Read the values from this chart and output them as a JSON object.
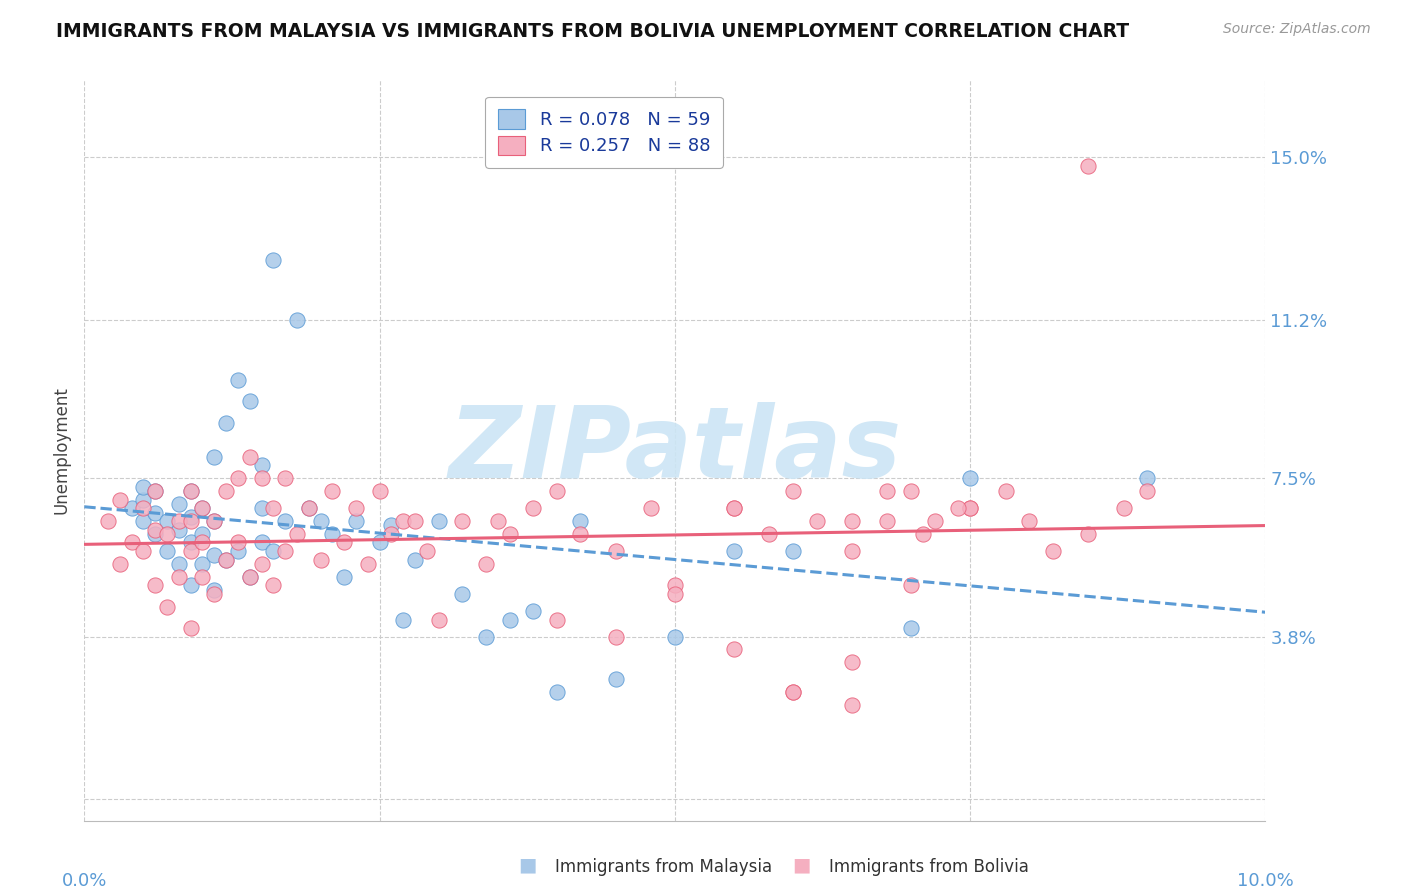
{
  "title": "IMMIGRANTS FROM MALAYSIA VS IMMIGRANTS FROM BOLIVIA UNEMPLOYMENT CORRELATION CHART",
  "source": "Source: ZipAtlas.com",
  "ylabel": "Unemployment",
  "ytick_vals": [
    0.0,
    0.038,
    0.075,
    0.112,
    0.15
  ],
  "ytick_labels": [
    "",
    "3.8%",
    "7.5%",
    "11.2%",
    "15.0%"
  ],
  "xlim": [
    0.0,
    0.1
  ],
  "ylim": [
    -0.005,
    0.168
  ],
  "color_malaysia": "#a8c8e8",
  "color_bolivia": "#f5afc0",
  "line_color_malaysia": "#5b9bd5",
  "line_color_bolivia": "#e8607a",
  "watermark_color": "#cce5f5",
  "legend_label1": "R = 0.078   N = 59",
  "legend_label2": "R = 0.257   N = 88",
  "malaysia_x": [
    0.004,
    0.005,
    0.005,
    0.005,
    0.006,
    0.006,
    0.006,
    0.007,
    0.007,
    0.008,
    0.008,
    0.008,
    0.009,
    0.009,
    0.009,
    0.009,
    0.01,
    0.01,
    0.01,
    0.011,
    0.011,
    0.011,
    0.011,
    0.012,
    0.012,
    0.013,
    0.013,
    0.014,
    0.014,
    0.015,
    0.015,
    0.015,
    0.016,
    0.016,
    0.017,
    0.018,
    0.019,
    0.02,
    0.021,
    0.022,
    0.023,
    0.025,
    0.026,
    0.027,
    0.028,
    0.03,
    0.032,
    0.034,
    0.036,
    0.038,
    0.04,
    0.042,
    0.045,
    0.05,
    0.055,
    0.06,
    0.07,
    0.075,
    0.09
  ],
  "malaysia_y": [
    0.068,
    0.065,
    0.07,
    0.073,
    0.062,
    0.067,
    0.072,
    0.058,
    0.065,
    0.055,
    0.063,
    0.069,
    0.05,
    0.06,
    0.066,
    0.072,
    0.055,
    0.062,
    0.068,
    0.049,
    0.057,
    0.065,
    0.08,
    0.056,
    0.088,
    0.058,
    0.098,
    0.052,
    0.093,
    0.06,
    0.068,
    0.078,
    0.058,
    0.126,
    0.065,
    0.112,
    0.068,
    0.065,
    0.062,
    0.052,
    0.065,
    0.06,
    0.064,
    0.042,
    0.056,
    0.065,
    0.048,
    0.038,
    0.042,
    0.044,
    0.025,
    0.065,
    0.028,
    0.038,
    0.058,
    0.058,
    0.04,
    0.075,
    0.075
  ],
  "bolivia_x": [
    0.002,
    0.003,
    0.003,
    0.004,
    0.005,
    0.005,
    0.006,
    0.006,
    0.006,
    0.007,
    0.007,
    0.008,
    0.008,
    0.009,
    0.009,
    0.009,
    0.009,
    0.01,
    0.01,
    0.01,
    0.011,
    0.011,
    0.012,
    0.012,
    0.013,
    0.013,
    0.014,
    0.014,
    0.015,
    0.015,
    0.016,
    0.016,
    0.017,
    0.017,
    0.018,
    0.019,
    0.02,
    0.021,
    0.022,
    0.023,
    0.024,
    0.025,
    0.026,
    0.027,
    0.028,
    0.029,
    0.03,
    0.032,
    0.034,
    0.036,
    0.038,
    0.04,
    0.042,
    0.045,
    0.048,
    0.05,
    0.055,
    0.058,
    0.06,
    0.062,
    0.065,
    0.068,
    0.07,
    0.072,
    0.075,
    0.078,
    0.08,
    0.082,
    0.085,
    0.088,
    0.09,
    0.045,
    0.05,
    0.055,
    0.06,
    0.065,
    0.035,
    0.04,
    0.055,
    0.06,
    0.065,
    0.07,
    0.075,
    0.065,
    0.068,
    0.071,
    0.074,
    0.085
  ],
  "bolivia_y": [
    0.065,
    0.07,
    0.055,
    0.06,
    0.058,
    0.068,
    0.05,
    0.063,
    0.072,
    0.045,
    0.062,
    0.052,
    0.065,
    0.04,
    0.058,
    0.065,
    0.072,
    0.052,
    0.06,
    0.068,
    0.048,
    0.065,
    0.056,
    0.072,
    0.06,
    0.075,
    0.052,
    0.08,
    0.055,
    0.075,
    0.05,
    0.068,
    0.058,
    0.075,
    0.062,
    0.068,
    0.056,
    0.072,
    0.06,
    0.068,
    0.055,
    0.072,
    0.062,
    0.065,
    0.065,
    0.058,
    0.042,
    0.065,
    0.055,
    0.062,
    0.068,
    0.042,
    0.062,
    0.058,
    0.068,
    0.05,
    0.068,
    0.062,
    0.072,
    0.065,
    0.058,
    0.065,
    0.05,
    0.065,
    0.068,
    0.072,
    0.065,
    0.058,
    0.062,
    0.068,
    0.072,
    0.038,
    0.048,
    0.035,
    0.025,
    0.022,
    0.065,
    0.072,
    0.068,
    0.025,
    0.032,
    0.072,
    0.068,
    0.065,
    0.072,
    0.062,
    0.068,
    0.148
  ]
}
